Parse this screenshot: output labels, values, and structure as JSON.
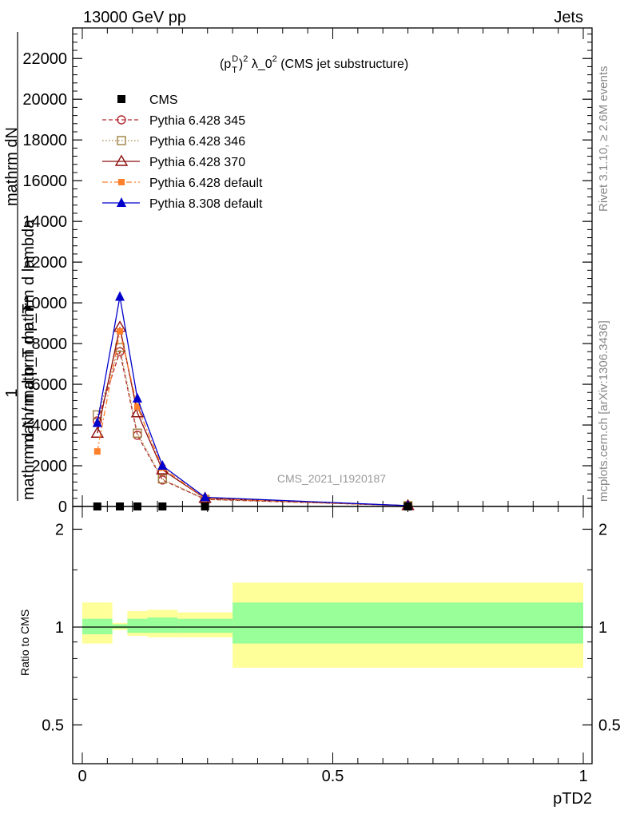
{
  "header": {
    "left": "13000 GeV pp",
    "right": "Jets"
  },
  "side_labels": {
    "rivet": "Rivet 3.1.10, ≥ 2.6M events",
    "mcplots": "mcplots.cern.ch [arXiv:1306.3436]"
  },
  "watermark": "CMS_2021_I1920187",
  "colors": {
    "cms": "#000000",
    "py6_345": "#b5282f",
    "py6_346": "#a08040",
    "py6_370": "#8b0d0d",
    "py6_default": "#ff7f2a",
    "py8_default": "#0000cc",
    "band_inner": "#99ff99",
    "band_outer": "#ffff99"
  },
  "chart_data": [
    {
      "type": "line",
      "title": "(p_T^D)^2 λ_0^2 (CMS jet substructure)",
      "title_parts": {
        "p": "(p",
        "sub": "T",
        "sup": "D",
        "close": ")",
        "sup2": "2",
        "lambda": " λ_0",
        "sup3": "2",
        "rest": " (CMS jet substructure)"
      },
      "ylabel_fragments": [
        "1",
        "mathrm d N / mathrm d p_T",
        "mathrm dN",
        "mathrm d p_T mathrm d lambda"
      ],
      "xlim": [
        0,
        1
      ],
      "ylim": [
        0,
        23500
      ],
      "yticks": [
        0,
        2000,
        4000,
        6000,
        8000,
        10000,
        12000,
        14000,
        16000,
        18000,
        20000,
        22000
      ],
      "ytick_labels": [
        "0",
        "2000",
        "4000",
        "6000",
        "8000",
        "10000",
        "12000",
        "14000",
        "16000",
        "18000",
        "20000",
        "22000"
      ],
      "legend_placement": "top-left",
      "series": [
        {
          "name": "CMS",
          "key": "cms",
          "marker": "square-filled",
          "style": "none",
          "x": [
            0.03,
            0.075,
            0.11,
            0.16,
            0.245,
            0.65
          ],
          "y": [
            0,
            0,
            0,
            0,
            0,
            0
          ]
        },
        {
          "name": "Pythia 6.428 345",
          "key": "py6_345",
          "marker": "circle-open",
          "style": "dashed",
          "x": [
            0.03,
            0.075,
            0.11,
            0.16,
            0.245,
            0.65
          ],
          "y": [
            4200,
            7600,
            3500,
            1300,
            350,
            40
          ]
        },
        {
          "name": "Pythia 6.428 346",
          "key": "py6_346",
          "marker": "square-open",
          "style": "dotted",
          "x": [
            0.03,
            0.075,
            0.11,
            0.16,
            0.245,
            0.65
          ],
          "y": [
            4500,
            7800,
            3600,
            1350,
            350,
            40
          ]
        },
        {
          "name": "Pythia 6.428 370",
          "key": "py6_370",
          "marker": "triangle-open",
          "style": "solid",
          "x": [
            0.03,
            0.075,
            0.11,
            0.16,
            0.245,
            0.65
          ],
          "y": [
            3600,
            8800,
            4600,
            1800,
            400,
            40
          ]
        },
        {
          "name": "Pythia 6.428 default",
          "key": "py6_default",
          "marker": "square-filled-small",
          "style": "dashdot",
          "x": [
            0.03,
            0.075,
            0.11,
            0.16,
            0.245,
            0.65
          ],
          "y": [
            2700,
            8600,
            4900,
            1900,
            400,
            40
          ]
        },
        {
          "name": "Pythia 8.308 default",
          "key": "py8_default",
          "marker": "triangle-filled",
          "style": "solid",
          "x": [
            0.03,
            0.075,
            0.11,
            0.16,
            0.245,
            0.65
          ],
          "y": [
            4100,
            10300,
            5300,
            2000,
            450,
            40
          ]
        }
      ]
    },
    {
      "type": "area",
      "ylabel": "Ratio to CMS",
      "xlabel": "pTD2",
      "xlim": [
        0,
        1
      ],
      "ylim": [
        0.38,
        2.35
      ],
      "yticks": [
        0.5,
        1,
        2
      ],
      "ytick_labels": [
        "0.5",
        "1",
        "2"
      ],
      "xticks": [
        0,
        0.5,
        1
      ],
      "xtick_labels": [
        "0",
        "0.5",
        "1"
      ],
      "reference": 1,
      "bins": [
        {
          "x0": 0.0,
          "x1": 0.06,
          "inner": [
            0.95,
            1.06
          ],
          "outer": [
            0.89,
            1.19
          ]
        },
        {
          "x0": 0.06,
          "x1": 0.09,
          "inner": [
            0.99,
            1.02
          ],
          "outer": [
            0.98,
            1.03
          ]
        },
        {
          "x0": 0.09,
          "x1": 0.13,
          "inner": [
            0.96,
            1.06
          ],
          "outer": [
            0.94,
            1.12
          ]
        },
        {
          "x0": 0.13,
          "x1": 0.19,
          "inner": [
            0.96,
            1.07
          ],
          "outer": [
            0.93,
            1.13
          ]
        },
        {
          "x0": 0.19,
          "x1": 0.3,
          "inner": [
            0.96,
            1.06
          ],
          "outer": [
            0.93,
            1.11
          ]
        },
        {
          "x0": 0.3,
          "x1": 1.0,
          "inner": [
            0.89,
            1.19
          ],
          "outer": [
            0.75,
            1.37
          ]
        }
      ]
    }
  ]
}
